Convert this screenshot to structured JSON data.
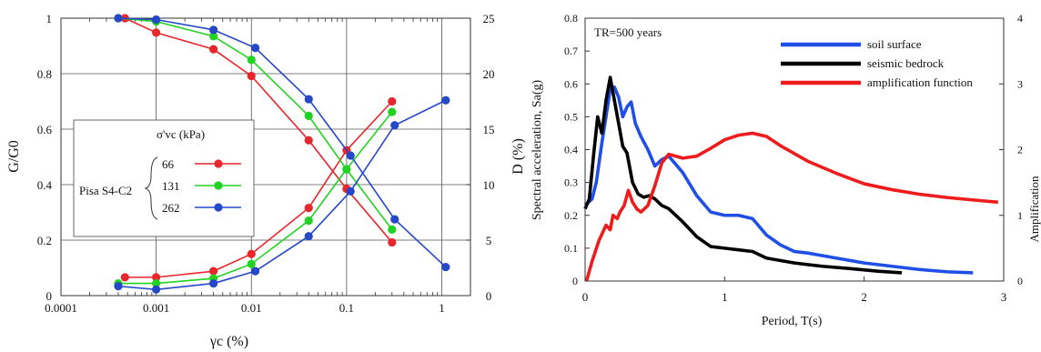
{
  "chart_data": [
    {
      "type": "scatter",
      "xlabel": "γc (%)",
      "ylabel": "G/G0",
      "y2label": "D (%)",
      "xscale": "log",
      "xlim": [
        0.0001,
        2
      ],
      "ylim": [
        0,
        1
      ],
      "y2lim": [
        0,
        25
      ],
      "xticks": [
        "0.0001",
        "0.001",
        "0.01",
        "0.1",
        "1"
      ],
      "yticks": [
        "0",
        "0.2",
        "0.4",
        "0.6",
        "0.8",
        "1"
      ],
      "y2ticks": [
        "0",
        "5",
        "10",
        "15",
        "20",
        "25"
      ],
      "grid": true,
      "legend": {
        "title": "σ'vc (kPa)",
        "group": "Pisa S4-C2",
        "placement": "middle-left"
      },
      "series": [
        {
          "name": "66",
          "color": "#e8262b",
          "x": [
            0.00047,
            0.001,
            0.004,
            0.01,
            0.04,
            0.1,
            0.3
          ],
          "gg0": [
            1.0,
            0.948,
            0.888,
            0.792,
            0.56,
            0.385,
            0.192
          ],
          "d": [
            1.65,
            1.65,
            2.2,
            3.75,
            7.9,
            13.1,
            17.5
          ]
        },
        {
          "name": "131",
          "color": "#22d222",
          "x": [
            0.0004,
            0.001,
            0.004,
            0.01,
            0.04,
            0.1,
            0.3
          ],
          "gg0": [
            1.0,
            0.988,
            0.935,
            0.85,
            0.648,
            0.455,
            0.238
          ],
          "d": [
            1.1,
            1.1,
            1.55,
            2.85,
            6.75,
            11.4,
            16.55
          ]
        },
        {
          "name": "262",
          "color": "#2448c8",
          "x": [
            0.0004,
            0.001,
            0.004,
            0.011,
            0.04,
            0.11,
            0.32,
            1.1
          ],
          "gg0": [
            1.0,
            0.995,
            0.958,
            0.893,
            0.708,
            0.505,
            0.275,
            0.103
          ],
          "d": [
            0.85,
            0.55,
            1.1,
            2.2,
            5.35,
            9.4,
            15.35,
            17.6
          ]
        }
      ]
    },
    {
      "type": "line",
      "annotation": "TR=500 years",
      "xlabel": "Period, T(s)",
      "ylabel": "Spectral acceleration, Sa(g)",
      "y2label": "Amplification",
      "xlim": [
        0,
        3
      ],
      "ylim": [
        0,
        0.8
      ],
      "y2lim": [
        0,
        4
      ],
      "xticks": [
        "0",
        "1",
        "2",
        "3"
      ],
      "yticks": [
        "0",
        "0.1",
        "0.2",
        "0.3",
        "0.4",
        "0.5",
        "0.6",
        "0.7",
        "0.8"
      ],
      "y2ticks": [
        "0",
        "1",
        "2",
        "3",
        "4"
      ],
      "grid": false,
      "legend": {
        "placement": "top-right"
      },
      "series": [
        {
          "name": "soil surface",
          "color": "#1f4fe6",
          "axis": "left",
          "x": [
            0,
            0.05,
            0.08,
            0.12,
            0.15,
            0.18,
            0.21,
            0.24,
            0.27,
            0.3,
            0.33,
            0.36,
            0.4,
            0.45,
            0.5,
            0.55,
            0.6,
            0.7,
            0.8,
            0.9,
            1.0,
            1.1,
            1.2,
            1.3,
            1.4,
            1.5,
            1.6,
            1.8,
            2.0,
            2.2,
            2.4,
            2.6,
            2.78
          ],
          "y": [
            0.23,
            0.25,
            0.3,
            0.42,
            0.5,
            0.585,
            0.59,
            0.56,
            0.5,
            0.53,
            0.545,
            0.48,
            0.44,
            0.4,
            0.35,
            0.37,
            0.38,
            0.33,
            0.26,
            0.21,
            0.2,
            0.2,
            0.19,
            0.14,
            0.11,
            0.09,
            0.085,
            0.07,
            0.055,
            0.045,
            0.035,
            0.028,
            0.025
          ]
        },
        {
          "name": "seismic bedrock",
          "color": "#000000",
          "axis": "left",
          "x": [
            0,
            0.03,
            0.06,
            0.09,
            0.12,
            0.15,
            0.18,
            0.21,
            0.24,
            0.27,
            0.3,
            0.34,
            0.38,
            0.42,
            0.46,
            0.5,
            0.55,
            0.6,
            0.7,
            0.8,
            0.9,
            1.0,
            1.1,
            1.2,
            1.3,
            1.5,
            1.7,
            1.9,
            2.1,
            2.27
          ],
          "y": [
            0.22,
            0.25,
            0.38,
            0.5,
            0.45,
            0.55,
            0.62,
            0.55,
            0.48,
            0.41,
            0.39,
            0.3,
            0.265,
            0.255,
            0.26,
            0.25,
            0.23,
            0.22,
            0.18,
            0.135,
            0.105,
            0.1,
            0.095,
            0.09,
            0.07,
            0.055,
            0.045,
            0.038,
            0.03,
            0.025
          ]
        },
        {
          "name": "amplification function",
          "color": "#ee1c1c",
          "axis": "right",
          "x": [
            0.01,
            0.05,
            0.1,
            0.15,
            0.18,
            0.2,
            0.23,
            0.25,
            0.28,
            0.31,
            0.34,
            0.37,
            0.4,
            0.45,
            0.5,
            0.55,
            0.6,
            0.7,
            0.8,
            0.9,
            1.0,
            1.1,
            1.2,
            1.3,
            1.4,
            1.6,
            1.8,
            2.0,
            2.2,
            2.4,
            2.6,
            2.8,
            2.96
          ],
          "y": [
            0.0,
            0.3,
            0.62,
            0.85,
            0.78,
            1.0,
            0.95,
            1.05,
            1.15,
            1.38,
            1.2,
            1.1,
            1.05,
            1.15,
            1.45,
            1.8,
            1.93,
            1.87,
            1.9,
            2.02,
            2.15,
            2.22,
            2.25,
            2.2,
            2.06,
            1.82,
            1.64,
            1.48,
            1.39,
            1.32,
            1.27,
            1.23,
            1.2
          ]
        }
      ]
    }
  ]
}
